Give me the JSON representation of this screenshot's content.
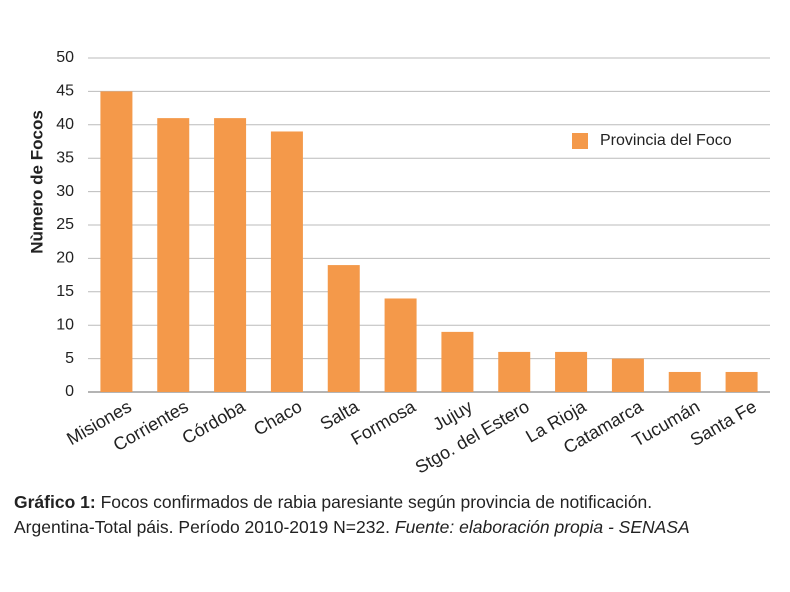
{
  "chart_data": {
    "type": "bar",
    "y_label": "Nùmero de Focos",
    "categories": [
      "Misiones",
      "Corrientes",
      "Córdoba",
      "Chaco",
      "Salta",
      "Formosa",
      "Jujuy",
      "Stgo. del Estero",
      "La Rioja",
      "Catamarca",
      "Tucumán",
      "Santa Fe"
    ],
    "series": [
      {
        "name": "Provincia del Foco",
        "color": "#f4994a",
        "values": [
          45,
          41,
          41,
          39,
          19,
          14,
          9,
          6,
          6,
          5,
          3,
          3
        ]
      }
    ],
    "ylim": [
      0,
      50
    ],
    "yticks": [
      0,
      5,
      10,
      15,
      20,
      25,
      30,
      35,
      40,
      45,
      50
    ],
    "grid": true,
    "legend": "upper right"
  },
  "caption": {
    "label": "Gráfico 1:",
    "lines": [
      "Focos confirmados de rabia paresiante según provincia de notificación.",
      "Argentina-Total páis. Período 2010-2019 N=232."
    ],
    "source": "Fuente: elaboración propia - SENASA"
  }
}
